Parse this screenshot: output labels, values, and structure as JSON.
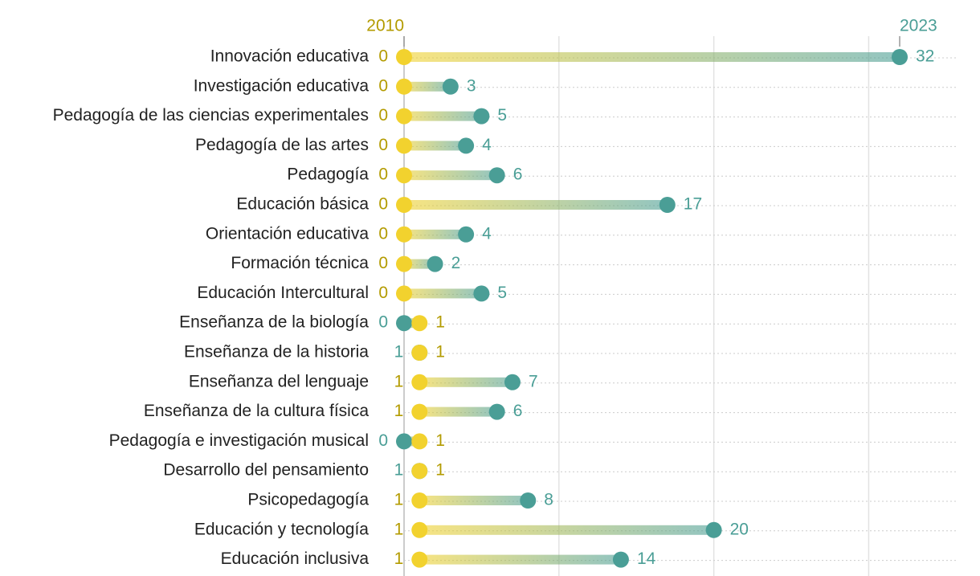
{
  "chart_data": {
    "type": "dumbbell",
    "categories": [
      "Innovación educativa",
      "Investigación educativa",
      "Pedagogía de las ciencias experimentales",
      "Pedagogía de las artes",
      "Pedagogía",
      "Educación básica",
      "Orientación educativa",
      "Formación técnica",
      "Educación Intercultural",
      "Enseñanza de la biología",
      "Enseñanza de la historia",
      "Enseñanza del lenguaje",
      "Enseñanza de la cultura física",
      "Pedagogía e investigación musical",
      "Desarrollo del pensamiento",
      "Psicopedagogía",
      "Educación y tecnología",
      "Educación inclusiva"
    ],
    "series": [
      {
        "name": "2010",
        "color": "#f2d22e",
        "label_color": "#b39b00",
        "values": [
          0,
          0,
          0,
          0,
          0,
          0,
          0,
          0,
          0,
          1,
          1,
          1,
          1,
          1,
          1,
          1,
          1,
          1
        ]
      },
      {
        "name": "2023",
        "color": "#4a9e96",
        "label_color": "#4a9e96",
        "values": [
          32,
          3,
          5,
          4,
          6,
          17,
          4,
          2,
          5,
          0,
          1,
          7,
          6,
          0,
          1,
          8,
          20,
          14
        ]
      }
    ],
    "xlim": [
      0,
      32
    ],
    "xticks": [
      0,
      10,
      20,
      30
    ],
    "grid": true
  }
}
